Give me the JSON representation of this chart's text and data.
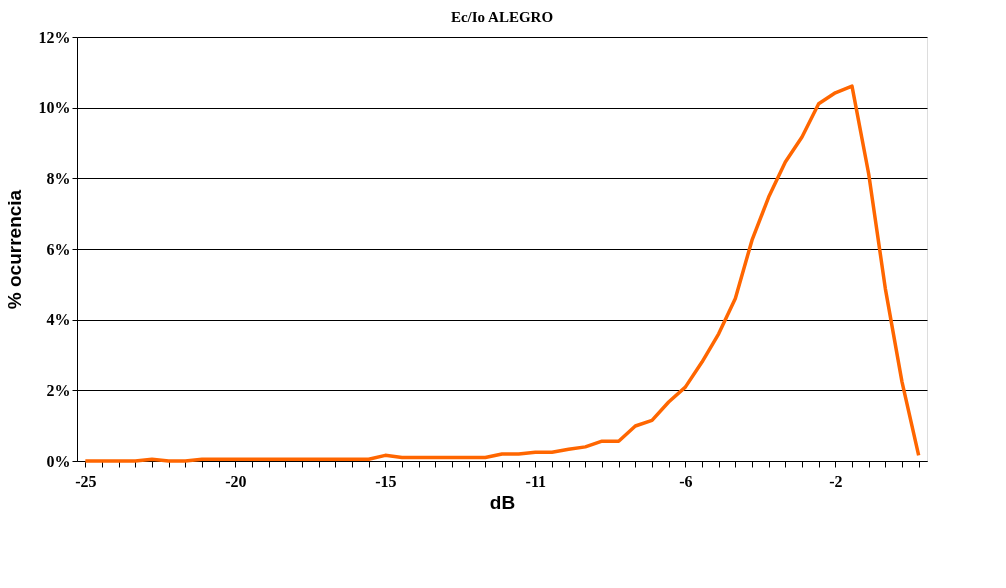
{
  "chart_data": {
    "type": "line",
    "title": "Ec/Io ALEGRO",
    "xlabel": "dB",
    "ylabel": "% ocurrencia",
    "categories": [
      "-25",
      null,
      null,
      null,
      null,
      null,
      null,
      null,
      null,
      "-20",
      null,
      null,
      null,
      null,
      null,
      null,
      null,
      null,
      "-15",
      null,
      null,
      null,
      null,
      null,
      null,
      null,
      null,
      "-11",
      null,
      null,
      null,
      null,
      null,
      null,
      null,
      null,
      "-6",
      null,
      null,
      null,
      null,
      null,
      null,
      null,
      null,
      "-2",
      null,
      null,
      null,
      null,
      null
    ],
    "series": [
      {
        "color": "#ff6600",
        "values": [
          0,
          0,
          0,
          0,
          0.05,
          0,
          0,
          0.05,
          0.05,
          0.05,
          0.05,
          0.05,
          0.05,
          0.05,
          0.05,
          0.05,
          0.05,
          0.05,
          0.16,
          0.1,
          0.1,
          0.1,
          0.1,
          0.1,
          0.1,
          0.2,
          0.2,
          0.25,
          0.25,
          0.33,
          0.4,
          0.56,
          0.56,
          0.99,
          1.15,
          1.67,
          2.09,
          2.8,
          3.6,
          4.6,
          6.25,
          7.47,
          8.46,
          9.17,
          10.11,
          10.42,
          10.61,
          8.13,
          4.88,
          2.24,
          0.16
        ]
      }
    ],
    "ylim": [
      0,
      12
    ],
    "yticks": [
      {
        "value": 0,
        "label": "0%"
      },
      {
        "value": 2,
        "label": "2%"
      },
      {
        "value": 4,
        "label": "4%"
      },
      {
        "value": 6,
        "label": "6%"
      },
      {
        "value": 8,
        "label": "8%"
      },
      {
        "value": 10,
        "label": "10%"
      },
      {
        "value": 12,
        "label": "12%"
      }
    ],
    "grid": "y",
    "legend": false,
    "marker": "none",
    "line_style": "solid"
  }
}
